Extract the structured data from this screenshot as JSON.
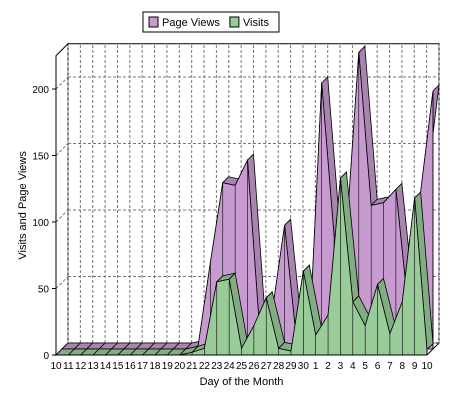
{
  "chart_data": {
    "type": "area",
    "title": "",
    "xlabel": "Day of the Month",
    "ylabel": "Visits and Page Views",
    "ylim": [
      0,
      225
    ],
    "yticks": [
      0,
      50,
      100,
      150,
      200
    ],
    "grid": true,
    "legend_position": "top",
    "categories": [
      "10",
      "11",
      "12",
      "13",
      "14",
      "15",
      "16",
      "17",
      "18",
      "19",
      "20",
      "21",
      "22",
      "23",
      "24",
      "25",
      "26",
      "27",
      "28",
      "29",
      "30",
      "1",
      "2",
      "3",
      "4",
      "5",
      "6",
      "7",
      "8",
      "9",
      "10"
    ],
    "series": [
      {
        "name": "Page Views",
        "color": "#c89bd0",
        "values": [
          0,
          0,
          0,
          0,
          0,
          0,
          0,
          0,
          0,
          0,
          0,
          2,
          65,
          125,
          123,
          142,
          12,
          28,
          93,
          3,
          6,
          200,
          85,
          87,
          223,
          108,
          110,
          120,
          30,
          118,
          194
        ]
      },
      {
        "name": "Visits",
        "color": "#99cc99",
        "values": [
          0,
          0,
          0,
          0,
          0,
          0,
          0,
          0,
          0,
          0,
          0,
          2,
          5,
          55,
          57,
          5,
          22,
          43,
          5,
          3,
          63,
          15,
          30,
          133,
          40,
          22,
          53,
          16,
          40,
          118,
          4
        ]
      }
    ]
  }
}
